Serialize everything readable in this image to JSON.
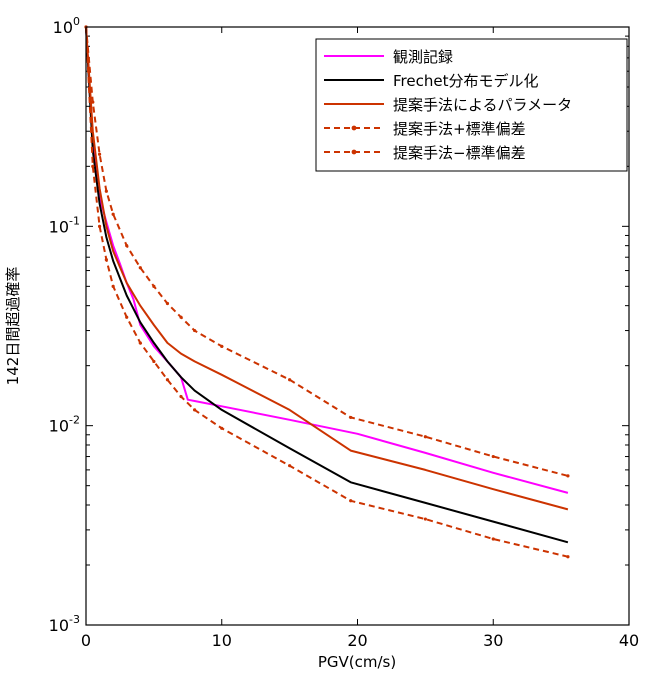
{
  "chart_data": {
    "type": "line",
    "title": "",
    "xlabel": "PGV(cm/s)",
    "ylabel": "142日間超過確率",
    "xlim": [
      0,
      40
    ],
    "ylim": [
      0.001,
      1
    ],
    "yscale": "log",
    "x_ticks": [
      0,
      10,
      20,
      30,
      40
    ],
    "x_tick_labels": [
      "0",
      "10",
      "20",
      "30",
      "40"
    ],
    "y_ticks": [
      0.001,
      0.01,
      0.1,
      1
    ],
    "y_tick_labels": [
      {
        "base": "10",
        "exp": "-3"
      },
      {
        "base": "10",
        "exp": "-2"
      },
      {
        "base": "10",
        "exp": "-1"
      },
      {
        "base": "10",
        "exp": "0"
      }
    ],
    "grid": false,
    "legend_position": "top-right",
    "series": [
      {
        "name": "観測記録",
        "color": "#ff00ff",
        "style": "solid",
        "x": [
          0,
          0.5,
          1,
          1.5,
          2,
          2.5,
          3,
          3.5,
          4,
          5,
          6,
          7,
          7.5,
          8,
          10,
          15,
          20,
          25,
          30,
          35.5
        ],
        "y": [
          1.0,
          0.26,
          0.14,
          0.105,
          0.08,
          0.065,
          0.052,
          0.043,
          0.032,
          0.025,
          0.021,
          0.0175,
          0.0135,
          0.0133,
          0.0125,
          0.0107,
          0.0091,
          0.0073,
          0.0058,
          0.0046
        ]
      },
      {
        "name": "Frechet分布モデル化",
        "color": "#000000",
        "style": "solid",
        "x": [
          0,
          0.5,
          1,
          1.5,
          2,
          3,
          4,
          5,
          6,
          7,
          8,
          10,
          15,
          19.5,
          25,
          30,
          35.5
        ],
        "y": [
          1.0,
          0.24,
          0.13,
          0.088,
          0.067,
          0.045,
          0.033,
          0.026,
          0.021,
          0.0175,
          0.015,
          0.012,
          0.0077,
          0.0052,
          0.0041,
          0.0033,
          0.0026
        ]
      },
      {
        "name": "提案手法によるパラメータ",
        "color": "#cc3300",
        "style": "solid",
        "x": [
          0,
          0.5,
          1,
          1.5,
          2,
          3,
          4,
          5,
          6,
          7,
          8,
          10,
          15,
          19.5,
          25,
          30,
          35.5
        ],
        "y": [
          1.0,
          0.3,
          0.155,
          0.1,
          0.075,
          0.052,
          0.04,
          0.032,
          0.026,
          0.023,
          0.021,
          0.018,
          0.012,
          0.0075,
          0.006,
          0.0048,
          0.0038
        ]
      },
      {
        "name": "提案手法+標準偏差",
        "color": "#cc3300",
        "style": "dashed",
        "x": [
          0,
          0.5,
          1,
          1.5,
          2,
          3,
          4,
          5,
          6,
          7,
          8,
          10,
          15,
          19.5,
          25,
          30,
          35.5
        ],
        "y": [
          1.0,
          0.42,
          0.23,
          0.15,
          0.115,
          0.08,
          0.062,
          0.05,
          0.041,
          0.035,
          0.03,
          0.025,
          0.017,
          0.011,
          0.0088,
          0.007,
          0.0056
        ]
      },
      {
        "name": "提案手法−標準偏差",
        "color": "#cc3300",
        "style": "dashed",
        "x": [
          0,
          0.5,
          1,
          1.5,
          2,
          3,
          4,
          5,
          6,
          7,
          8,
          10,
          15,
          19.5,
          25,
          30,
          35.5
        ],
        "y": [
          1.0,
          0.2,
          0.1,
          0.068,
          0.05,
          0.035,
          0.026,
          0.021,
          0.017,
          0.014,
          0.012,
          0.0097,
          0.0063,
          0.0042,
          0.0034,
          0.0027,
          0.0022
        ]
      }
    ]
  }
}
